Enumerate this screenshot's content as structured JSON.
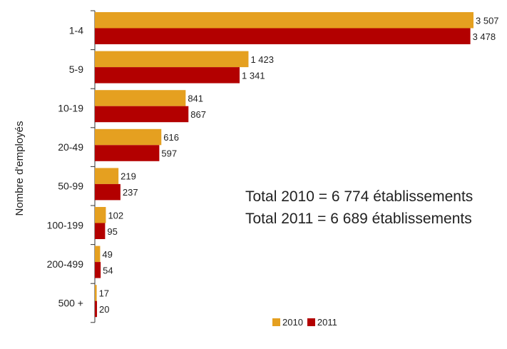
{
  "chart_data": {
    "type": "bar",
    "orientation": "horizontal",
    "categories": [
      "1-4",
      "5-9",
      "10-19",
      "20-49",
      "50-99",
      "100-199",
      "200-499",
      "500 +"
    ],
    "series": [
      {
        "name": "2010",
        "color": "#E5A020",
        "values": [
          3507,
          1423,
          841,
          616,
          219,
          102,
          49,
          17
        ],
        "labels": [
          "3 507",
          "1 423",
          "841",
          "616",
          "219",
          "102",
          "49",
          "17"
        ]
      },
      {
        "name": "2011",
        "color": "#B30000",
        "values": [
          3478,
          1341,
          867,
          597,
          237,
          95,
          54,
          20
        ],
        "labels": [
          "3 478",
          "1 341",
          "867",
          "597",
          "237",
          "95",
          "54",
          "20"
        ]
      }
    ],
    "xlim": [
      0,
      3550
    ],
    "ylabel": "Nombre d'employés",
    "grid": false,
    "legend_position": "bottom-center",
    "annotations": [
      "Total 2010 = 6 774 établissements",
      "Total 2011 = 6 689 établissements"
    ]
  }
}
